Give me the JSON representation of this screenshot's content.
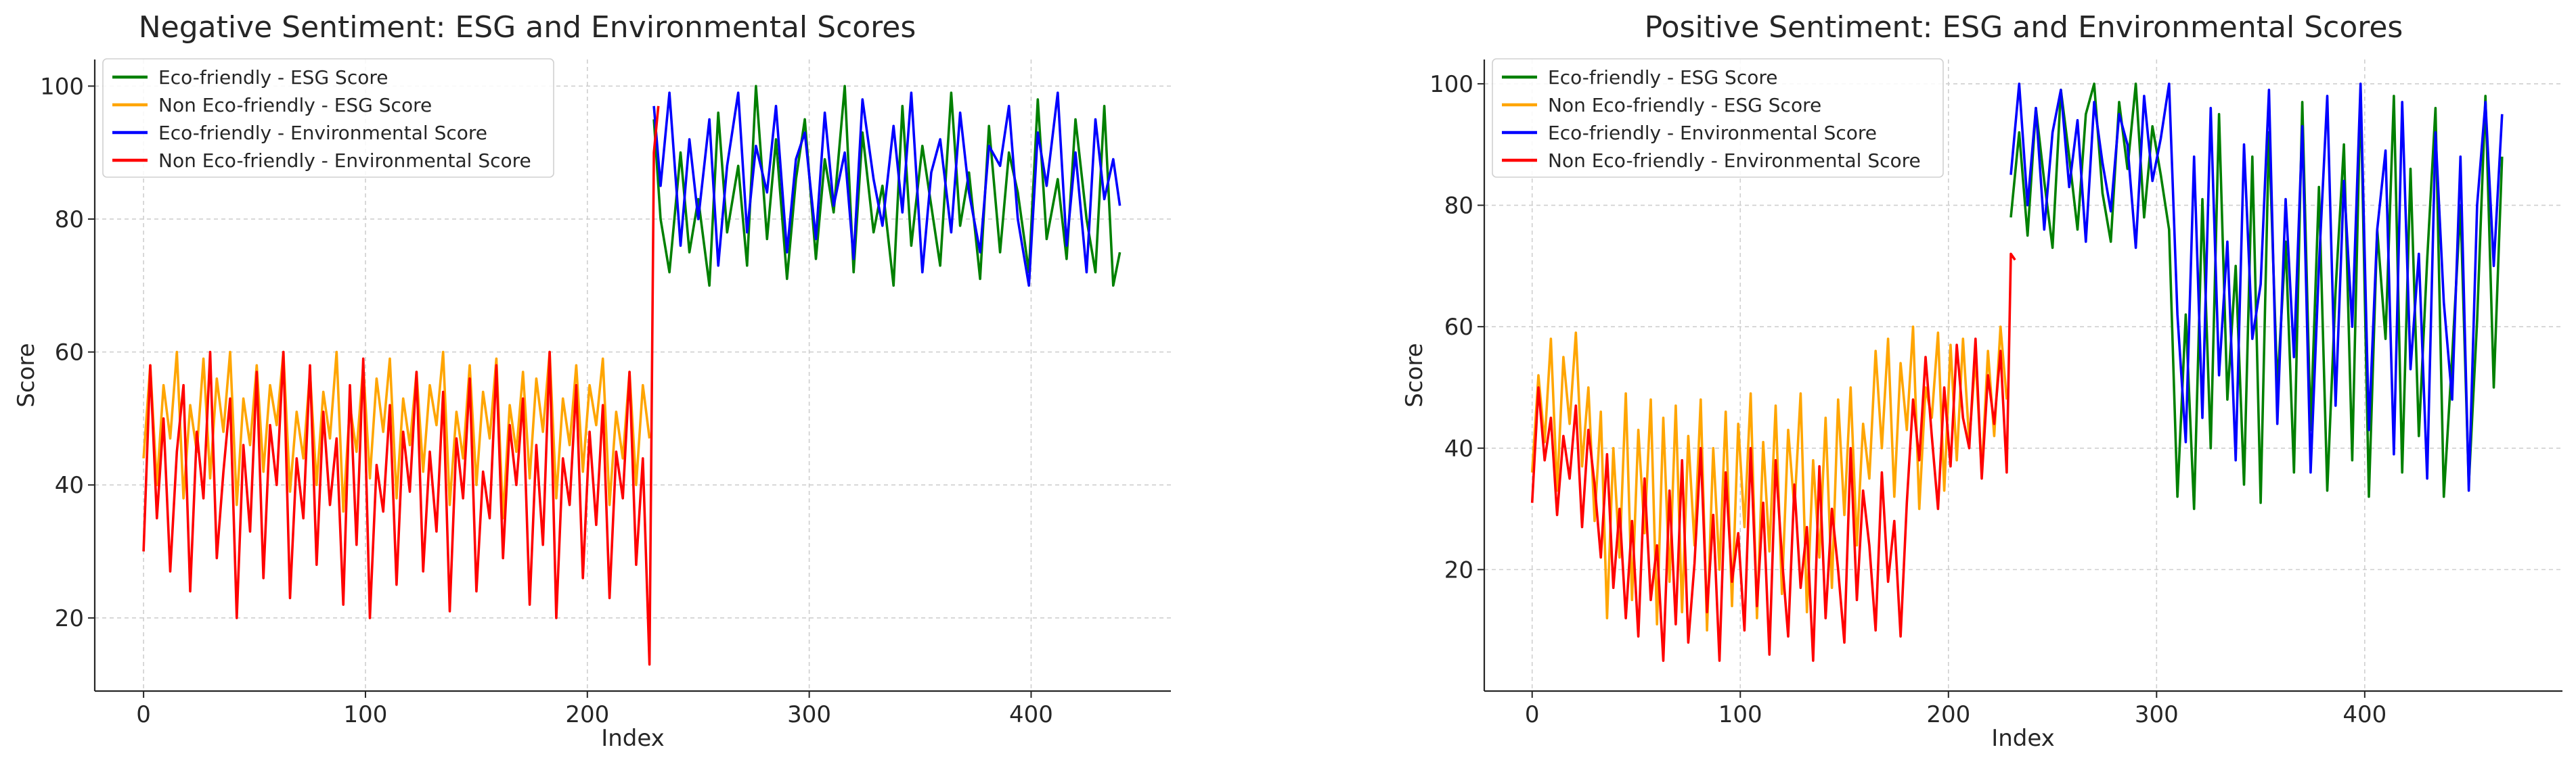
{
  "chart_data": [
    {
      "type": "line",
      "title": "Negative Sentiment: ESG and Environmental Scores",
      "xlabel": "Index",
      "ylabel": "Score",
      "xlim": [
        -22,
        463
      ],
      "ylim": [
        9,
        104
      ],
      "xticks": [
        0,
        100,
        200,
        300,
        400
      ],
      "yticks": [
        20,
        40,
        60,
        80,
        100
      ],
      "grid": true,
      "legend_position": "top-left",
      "series": [
        {
          "name": "Eco-friendly - ESG Score",
          "color": "#008000",
          "x": [
            230,
            233,
            237,
            242,
            246,
            250,
            255,
            259,
            263,
            268,
            272,
            276,
            281,
            285,
            290,
            294,
            298,
            303,
            307,
            311,
            316,
            320,
            324,
            329,
            333,
            338,
            342,
            346,
            351,
            355,
            359,
            364,
            368,
            372,
            377,
            381,
            386,
            390,
            394,
            399,
            403,
            407,
            412,
            416,
            420,
            425,
            429,
            433,
            437,
            440
          ],
          "y": [
            95,
            80,
            72,
            90,
            75,
            83,
            70,
            96,
            78,
            88,
            73,
            100,
            77,
            92,
            71,
            86,
            95,
            74,
            89,
            81,
            100,
            72,
            93,
            78,
            85,
            70,
            97,
            76,
            91,
            82,
            73,
            99,
            79,
            87,
            71,
            94,
            75,
            90,
            84,
            72,
            98,
            77,
            86,
            74,
            95,
            80,
            72,
            97,
            70,
            75
          ]
        },
        {
          "name": "Non Eco-friendly - ESG Score",
          "color": "#ffa500",
          "x": [
            0,
            3,
            6,
            9,
            12,
            15,
            18,
            21,
            24,
            27,
            30,
            33,
            36,
            39,
            42,
            45,
            48,
            51,
            54,
            57,
            60,
            63,
            66,
            69,
            72,
            75,
            78,
            81,
            84,
            87,
            90,
            93,
            96,
            99,
            102,
            105,
            108,
            111,
            114,
            117,
            120,
            123,
            126,
            129,
            132,
            135,
            138,
            141,
            144,
            147,
            150,
            153,
            156,
            159,
            162,
            165,
            168,
            171,
            174,
            177,
            180,
            183,
            186,
            189,
            192,
            195,
            198,
            201,
            204,
            207,
            210,
            213,
            216,
            219,
            222,
            225,
            228
          ],
          "y": [
            44,
            58,
            40,
            55,
            47,
            60,
            38,
            52,
            45,
            59,
            41,
            56,
            48,
            60,
            37,
            53,
            46,
            58,
            42,
            55,
            49,
            60,
            39,
            51,
            44,
            57,
            40,
            54,
            47,
            60,
            36,
            52,
            45,
            58,
            41,
            56,
            48,
            59,
            38,
            53,
            46,
            57,
            42,
            55,
            49,
            60,
            37,
            51,
            44,
            58,
            40,
            54,
            47,
            59,
            35,
            52,
            45,
            57,
            41,
            56,
            48,
            60,
            38,
            53,
            46,
            58,
            42,
            55,
            49,
            59,
            37,
            51,
            44,
            57,
            40,
            55,
            47
          ]
        },
        {
          "name": "Eco-friendly - Environmental Score",
          "color": "#0000ff",
          "x": [
            230,
            233,
            237,
            242,
            246,
            250,
            255,
            259,
            263,
            268,
            272,
            276,
            281,
            285,
            290,
            294,
            298,
            303,
            307,
            311,
            316,
            320,
            324,
            329,
            333,
            338,
            342,
            346,
            351,
            355,
            359,
            364,
            368,
            372,
            377,
            381,
            386,
            390,
            394,
            399,
            403,
            407,
            412,
            416,
            420,
            425,
            429,
            433,
            437,
            440
          ],
          "y": [
            97,
            85,
            99,
            76,
            92,
            80,
            95,
            73,
            88,
            99,
            78,
            91,
            84,
            97,
            75,
            89,
            93,
            77,
            96,
            82,
            90,
            74,
            98,
            86,
            79,
            94,
            81,
            99,
            72,
            87,
            92,
            78,
            96,
            84,
            75,
            91,
            88,
            97,
            80,
            70,
            93,
            85,
            99,
            76,
            90,
            72,
            95,
            83,
            89,
            82
          ]
        },
        {
          "name": "Non Eco-friendly - Environmental Score",
          "color": "#ff0000",
          "x": [
            0,
            3,
            6,
            9,
            12,
            15,
            18,
            21,
            24,
            27,
            30,
            33,
            36,
            39,
            42,
            45,
            48,
            51,
            54,
            57,
            60,
            63,
            66,
            69,
            72,
            75,
            78,
            81,
            84,
            87,
            90,
            93,
            96,
            99,
            102,
            105,
            108,
            111,
            114,
            117,
            120,
            123,
            126,
            129,
            132,
            135,
            138,
            141,
            144,
            147,
            150,
            153,
            156,
            159,
            162,
            165,
            168,
            171,
            174,
            177,
            180,
            183,
            186,
            189,
            192,
            195,
            198,
            201,
            204,
            207,
            210,
            213,
            216,
            219,
            222,
            225,
            228,
            230,
            232
          ],
          "y": [
            30,
            58,
            35,
            50,
            27,
            45,
            55,
            24,
            48,
            38,
            60,
            29,
            42,
            53,
            20,
            46,
            33,
            57,
            26,
            49,
            40,
            60,
            23,
            44,
            35,
            58,
            28,
            51,
            37,
            47,
            22,
            55,
            31,
            59,
            20,
            43,
            36,
            52,
            25,
            48,
            39,
            57,
            27,
            45,
            33,
            54,
            21,
            47,
            38,
            56,
            24,
            42,
            35,
            58,
            29,
            49,
            40,
            53,
            22,
            46,
            31,
            60,
            20,
            44,
            37,
            55,
            26,
            48,
            34,
            52,
            23,
            45,
            38,
            57,
            28,
            44,
            13,
            90,
            97
          ]
        }
      ]
    },
    {
      "type": "line",
      "title": "Positive Sentiment: ESG and Environmental Scores",
      "xlabel": "Index",
      "ylabel": "Score",
      "xlim": [
        -23,
        495
      ],
      "ylim": [
        0,
        104
      ],
      "xticks": [
        0,
        100,
        200,
        300,
        400
      ],
      "yticks": [
        20,
        40,
        60,
        80,
        100
      ],
      "grid": true,
      "legend_position": "top-left",
      "series": [
        {
          "name": "Eco-friendly - ESG Score",
          "color": "#008000",
          "x": [
            230,
            234,
            238,
            242,
            246,
            250,
            254,
            258,
            262,
            266,
            270,
            274,
            278,
            282,
            286,
            290,
            294,
            298,
            302,
            306,
            310,
            314,
            318,
            322,
            326,
            330,
            334,
            338,
            342,
            346,
            350,
            354,
            358,
            362,
            366,
            370,
            374,
            378,
            382,
            386,
            390,
            394,
            398,
            402,
            406,
            410,
            414,
            418,
            422,
            426,
            430,
            434,
            438,
            442,
            446,
            450,
            454,
            458,
            462,
            466
          ],
          "y": [
            78,
            92,
            75,
            96,
            84,
            73,
            99,
            88,
            76,
            95,
            100,
            82,
            74,
            97,
            86,
            100,
            78,
            93,
            85,
            76,
            32,
            62,
            30,
            81,
            40,
            95,
            48,
            70,
            34,
            88,
            31,
            92,
            50,
            74,
            36,
            97,
            43,
            83,
            33,
            66,
            90,
            38,
            99,
            32,
            76,
            58,
            98,
            36,
            86,
            42,
            71,
            96,
            32,
            55,
            80,
            34,
            61,
            98,
            50,
            88
          ]
        },
        {
          "name": "Non Eco-friendly - ESG Score",
          "color": "#ffa500",
          "x": [
            0,
            3,
            6,
            9,
            12,
            15,
            18,
            21,
            24,
            27,
            30,
            33,
            36,
            39,
            42,
            45,
            48,
            51,
            54,
            57,
            60,
            63,
            66,
            69,
            72,
            75,
            78,
            81,
            84,
            87,
            90,
            93,
            96,
            99,
            102,
            105,
            108,
            111,
            114,
            117,
            120,
            123,
            126,
            129,
            132,
            135,
            138,
            141,
            144,
            147,
            150,
            153,
            156,
            159,
            162,
            165,
            168,
            171,
            174,
            177,
            180,
            183,
            186,
            189,
            192,
            195,
            198,
            201,
            204,
            207,
            210,
            213,
            216,
            219,
            222,
            225,
            228
          ],
          "y": [
            36,
            52,
            41,
            58,
            33,
            55,
            44,
            59,
            37,
            50,
            28,
            46,
            12,
            40,
            22,
            49,
            15,
            43,
            26,
            48,
            11,
            45,
            18,
            47,
            13,
            42,
            24,
            48,
            10,
            40,
            20,
            46,
            14,
            44,
            27,
            49,
            12,
            41,
            23,
            47,
            16,
            43,
            30,
            49,
            13,
            38,
            22,
            45,
            17,
            48,
            29,
            50,
            24,
            44,
            35,
            56,
            40,
            58,
            32,
            54,
            43,
            60,
            30,
            50,
            45,
            59,
            33,
            57,
            38,
            58,
            41,
            55,
            36,
            56,
            42,
            60,
            48
          ]
        },
        {
          "name": "Eco-friendly - Environmental Score",
          "color": "#0000ff",
          "x": [
            230,
            234,
            238,
            242,
            246,
            250,
            254,
            258,
            262,
            266,
            270,
            274,
            278,
            282,
            286,
            290,
            294,
            298,
            302,
            306,
            310,
            314,
            318,
            322,
            326,
            330,
            334,
            338,
            342,
            346,
            350,
            354,
            358,
            362,
            366,
            370,
            374,
            378,
            382,
            386,
            390,
            394,
            398,
            402,
            406,
            410,
            414,
            418,
            422,
            426,
            430,
            434,
            438,
            442,
            446,
            450,
            454,
            458,
            462,
            466
          ],
          "y": [
            85,
            100,
            80,
            96,
            76,
            92,
            99,
            83,
            94,
            74,
            97,
            87,
            79,
            95,
            90,
            73,
            98,
            84,
            91,
            100,
            62,
            41,
            88,
            45,
            96,
            52,
            74,
            38,
            90,
            58,
            67,
            99,
            44,
            81,
            55,
            93,
            36,
            70,
            98,
            47,
            84,
            60,
            100,
            43,
            76,
            89,
            39,
            97,
            53,
            72,
            35,
            92,
            64,
            48,
            88,
            33,
            80,
            97,
            70,
            95
          ]
        },
        {
          "name": "Non Eco-friendly - Environmental Score",
          "color": "#ff0000",
          "x": [
            0,
            3,
            6,
            9,
            12,
            15,
            18,
            21,
            24,
            27,
            30,
            33,
            36,
            39,
            42,
            45,
            48,
            51,
            54,
            57,
            60,
            63,
            66,
            69,
            72,
            75,
            78,
            81,
            84,
            87,
            90,
            93,
            96,
            99,
            102,
            105,
            108,
            111,
            114,
            117,
            120,
            123,
            126,
            129,
            132,
            135,
            138,
            141,
            144,
            147,
            150,
            153,
            156,
            159,
            162,
            165,
            168,
            171,
            174,
            177,
            180,
            183,
            186,
            189,
            192,
            195,
            198,
            201,
            204,
            207,
            210,
            213,
            216,
            219,
            222,
            225,
            228,
            230,
            232
          ],
          "y": [
            31,
            50,
            38,
            45,
            29,
            42,
            35,
            47,
            27,
            43,
            34,
            22,
            39,
            17,
            30,
            12,
            28,
            9,
            35,
            15,
            24,
            5,
            33,
            11,
            38,
            8,
            21,
            40,
            13,
            29,
            5,
            36,
            18,
            26,
            10,
            40,
            14,
            31,
            6,
            38,
            22,
            9,
            34,
            17,
            27,
            5,
            37,
            12,
            30,
            20,
            8,
            40,
            15,
            33,
            24,
            10,
            36,
            18,
            28,
            9,
            31,
            48,
            38,
            55,
            42,
            30,
            50,
            37,
            57,
            45,
            40,
            58,
            35,
            52,
            44,
            56,
            36,
            72,
            71
          ]
        }
      ]
    }
  ]
}
